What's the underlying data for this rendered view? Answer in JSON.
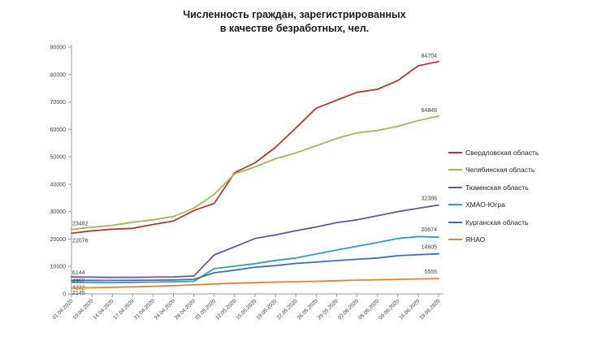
{
  "chart_data": {
    "type": "line",
    "title_line1": "Численность граждан, зарегистрированных",
    "title_line2": "в качестве безработных, чел.",
    "grid": false,
    "legend_position": "right",
    "ylim": [
      0,
      90000
    ],
    "y_ticks": [
      0,
      10000,
      20000,
      30000,
      40000,
      50000,
      60000,
      70000,
      80000,
      90000
    ],
    "x": [
      "01.04.2020",
      "10.04.2020",
      "14.04.2020",
      "17.04.2020",
      "21.04.2020",
      "24.04.2020",
      "28.04.2020",
      "01.05.2020",
      "12.05.2020",
      "15.05.2020",
      "19.05.2020",
      "22.05.2020",
      "26.05.2020",
      "29.05.2020",
      "02.06.2020",
      "05.06.2020",
      "09.06.2020",
      "16.06.2020",
      "19.06.2020"
    ],
    "series": [
      {
        "name": "Свердловская область",
        "color": "#B03A33",
        "start_label": "22076",
        "end_label": "84704",
        "values": [
          22076,
          23000,
          23600,
          23900,
          25300,
          26600,
          30400,
          33000,
          44200,
          47800,
          53400,
          60500,
          67700,
          70600,
          73500,
          74600,
          77800,
          83200,
          84704
        ]
      },
      {
        "name": "Челябинская область",
        "color": "#9BBB59",
        "start_label": "23482",
        "end_label": "64848",
        "values": [
          23482,
          24300,
          25000,
          26100,
          27000,
          28200,
          31300,
          36300,
          43800,
          46300,
          49300,
          51400,
          54000,
          56700,
          58700,
          59600,
          61100,
          63200,
          64848
        ]
      },
      {
        "name": "Тюменская область",
        "color": "#6A549E",
        "start_label": "6144",
        "end_label": "32386",
        "values": [
          6144,
          6100,
          6000,
          6000,
          6100,
          6200,
          6500,
          14200,
          17200,
          20200,
          21500,
          23000,
          24400,
          26000,
          27000,
          28500,
          30000,
          31200,
          32386
        ]
      },
      {
        "name": "ХМАО-Югра",
        "color": "#2F9FB5",
        "start_label": "4232",
        "end_label": "20674",
        "values": [
          4232,
          4200,
          4150,
          4200,
          4300,
          4400,
          4600,
          9200,
          10100,
          11000,
          12200,
          13100,
          14550,
          16000,
          17350,
          18700,
          20200,
          20900,
          20674
        ]
      },
      {
        "name": "Курганская область",
        "color": "#3E6FB5",
        "start_label": "4957",
        "end_label": "14605",
        "values": [
          4957,
          4950,
          4900,
          4950,
          5000,
          5100,
          5300,
          7700,
          8650,
          9750,
          10300,
          11100,
          11600,
          12150,
          12600,
          13100,
          13900,
          14300,
          14605
        ]
      },
      {
        "name": "ЯНАО",
        "color": "#E8812B",
        "start_label": "2145",
        "end_label": "5555",
        "values": [
          2145,
          2250,
          2400,
          2550,
          2750,
          3000,
          3300,
          3600,
          3900,
          4100,
          4300,
          4450,
          4600,
          4800,
          5000,
          5150,
          5300,
          5450,
          5555
        ]
      }
    ]
  }
}
